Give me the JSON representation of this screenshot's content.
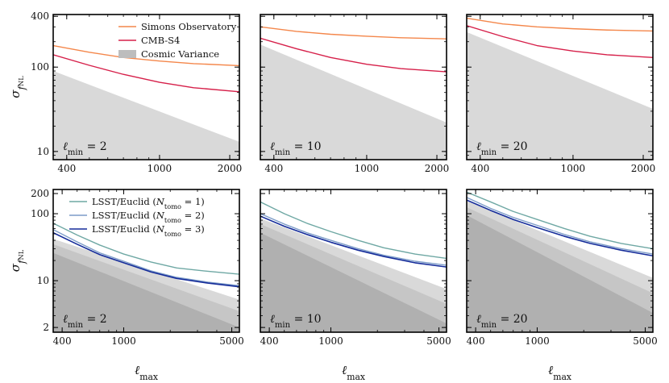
{
  "colors": {
    "simons": "#f4874b",
    "cmbs4": "#d6204a",
    "cv_light": "#d9d9d9",
    "cv_mid": "#c6c6c6",
    "cv_dark": "#b0b0b0",
    "lsst1": "#6fa8a4",
    "lsst2": "#7d9cc8",
    "lsst3": "#152c9a"
  },
  "axis_labels": {
    "ylabel_main": "σ",
    "ylabel_sub": "f",
    "ylabel_subsub": "NL",
    "xlabel_main": "ℓ",
    "xlabel_sub": "max"
  },
  "chart_data": [
    {
      "type": "line",
      "row": 0,
      "col": 0,
      "annotation_base": "ℓ",
      "annotation_sub": "min",
      "annotation_eq": " = 2",
      "xscale": "log",
      "yscale": "log",
      "xlim": [
        350,
        2200
      ],
      "ylim": [
        8,
        420
      ],
      "xticks": [
        400,
        1000,
        2000
      ],
      "xtick_labels": [
        "400",
        "1000",
        "2000"
      ],
      "yticks": [
        10,
        100,
        400
      ],
      "ytick_labels": [
        "10",
        "100",
        "400"
      ],
      "legend": {
        "placement": "top-right",
        "entries": [
          "Simons Observatory",
          "CMB-S4",
          "Cosmic Variance"
        ]
      },
      "series": [
        {
          "name": "Simons Observatory",
          "color_key": "simons",
          "x": [
            350,
            500,
            700,
            1000,
            1400,
            2200
          ],
          "y": [
            180,
            150,
            130,
            118,
            110,
            104
          ]
        },
        {
          "name": "CMB-S4",
          "color_key": "cmbs4",
          "x": [
            350,
            500,
            700,
            1000,
            1400,
            2200
          ],
          "y": [
            140,
            105,
            82,
            66,
            57,
            51
          ]
        }
      ],
      "bands": [
        {
          "name": "Cosmic Variance",
          "color_key": "cv_light",
          "x": [
            350,
            2200
          ],
          "y": [
            90,
            13
          ]
        }
      ]
    },
    {
      "type": "line",
      "row": 0,
      "col": 1,
      "annotation_base": "ℓ",
      "annotation_sub": "min",
      "annotation_eq": " = 10",
      "xscale": "log",
      "yscale": "log",
      "xlim": [
        350,
        2200
      ],
      "ylim": [
        8,
        420
      ],
      "xticks": [
        400,
        1000,
        2000
      ],
      "xtick_labels": [
        "400",
        "1000",
        "2000"
      ],
      "yticks": [
        10,
        100,
        400
      ],
      "ytick_labels": [],
      "series": [
        {
          "color_key": "simons",
          "x": [
            350,
            500,
            700,
            1000,
            1400,
            2200
          ],
          "y": [
            300,
            265,
            245,
            232,
            223,
            216
          ]
        },
        {
          "color_key": "cmbs4",
          "x": [
            350,
            500,
            700,
            1000,
            1400,
            2200
          ],
          "y": [
            220,
            165,
            130,
            108,
            96,
            88
          ]
        }
      ],
      "bands": [
        {
          "color_key": "cv_light",
          "x": [
            350,
            2200
          ],
          "y": [
            185,
            22
          ]
        }
      ]
    },
    {
      "type": "line",
      "row": 0,
      "col": 2,
      "annotation_base": "ℓ",
      "annotation_sub": "min",
      "annotation_eq": " = 20",
      "xscale": "log",
      "yscale": "log",
      "xlim": [
        350,
        2200
      ],
      "ylim": [
        8,
        420
      ],
      "xticks": [
        400,
        1000,
        2000
      ],
      "xtick_labels": [
        "400",
        "1000",
        "2000"
      ],
      "yticks": [
        10,
        100,
        400
      ],
      "ytick_labels": [],
      "series": [
        {
          "color_key": "simons",
          "x": [
            350,
            500,
            700,
            1000,
            1400,
            2200
          ],
          "y": [
            380,
            325,
            300,
            285,
            275,
            268
          ]
        },
        {
          "color_key": "cmbs4",
          "x": [
            350,
            500,
            700,
            1000,
            1400,
            2200
          ],
          "y": [
            310,
            230,
            180,
            155,
            140,
            130
          ]
        }
      ],
      "bands": [
        {
          "color_key": "cv_light",
          "x": [
            350,
            2200
          ],
          "y": [
            260,
            32
          ]
        }
      ]
    },
    {
      "type": "line",
      "row": 1,
      "col": 0,
      "annotation_base": "ℓ",
      "annotation_sub": "min",
      "annotation_eq": " = 2",
      "xscale": "log",
      "yscale": "log",
      "xlim": [
        350,
        5600
      ],
      "ylim": [
        1.7,
        230
      ],
      "xticks": [
        400,
        1000,
        5000
      ],
      "xtick_labels": [
        "400",
        "1000",
        "5000"
      ],
      "yticks": [
        2,
        10,
        100,
        200
      ],
      "ytick_labels": [
        "2",
        "10",
        "100",
        "200"
      ],
      "legend": {
        "placement": "top-right",
        "entries_main": [
          "LSST/Euclid (",
          "LSST/Euclid (",
          "LSST/Euclid ("
        ],
        "entries_var": [
          "N",
          "N",
          "N"
        ],
        "entries_sub": [
          "tomo",
          "tomo",
          "tomo"
        ],
        "entries_val": [
          " = 1)",
          " = 2)",
          " = 3)"
        ]
      },
      "series": [
        {
          "name": "LSST/Euclid (N_tomo = 1)",
          "color_key": "lsst1",
          "x": [
            350,
            500,
            700,
            1000,
            1500,
            2200,
            3500,
            5600
          ],
          "y": [
            72,
            48,
            34,
            25,
            19,
            15.5,
            13.8,
            12.5
          ]
        },
        {
          "name": "LSST/Euclid (N_tomo = 2)",
          "color_key": "lsst2",
          "x": [
            350,
            500,
            700,
            1000,
            1500,
            2200,
            3500,
            5600
          ],
          "y": [
            58,
            38,
            26,
            19.5,
            14,
            11.2,
            9.5,
            8.4
          ]
        },
        {
          "name": "LSST/Euclid (N_tomo = 3)",
          "color_key": "lsst3",
          "x": [
            350,
            500,
            700,
            1000,
            1500,
            2200,
            3500,
            5600
          ],
          "y": [
            52,
            35,
            24.5,
            18.5,
            13.5,
            10.8,
            9.2,
            8.1
          ]
        }
      ],
      "bands": [
        {
          "color_key": "cv_light",
          "x": [
            350,
            5600
          ],
          "y": [
            42,
            5.2
          ]
        },
        {
          "color_key": "cv_mid",
          "x": [
            350,
            5600
          ],
          "y": [
            35,
            3.5
          ]
        },
        {
          "color_key": "cv_dark",
          "x": [
            350,
            5600
          ],
          "y": [
            26,
            2.0
          ]
        }
      ]
    },
    {
      "type": "line",
      "row": 1,
      "col": 1,
      "annotation_base": "ℓ",
      "annotation_sub": "min",
      "annotation_eq": " = 10",
      "xscale": "log",
      "yscale": "log",
      "xlim": [
        350,
        5600
      ],
      "ylim": [
        1.7,
        230
      ],
      "xticks": [
        400,
        1000,
        5000
      ],
      "xtick_labels": [
        "400",
        "1000",
        "5000"
      ],
      "yticks": [
        2,
        10,
        100,
        200
      ],
      "ytick_labels": [],
      "series": [
        {
          "color_key": "lsst1",
          "x": [
            350,
            500,
            700,
            1000,
            1500,
            2200,
            3500,
            5600
          ],
          "y": [
            150,
            100,
            72,
            54,
            40,
            31,
            25,
            21.5
          ]
        },
        {
          "color_key": "lsst2",
          "x": [
            350,
            500,
            700,
            1000,
            1500,
            2200,
            3500,
            5600
          ],
          "y": [
            100,
            70,
            52,
            40,
            30,
            24,
            19.5,
            17
          ]
        },
        {
          "color_key": "lsst3",
          "x": [
            350,
            500,
            700,
            1000,
            1500,
            2200,
            3500,
            5600
          ],
          "y": [
            92,
            65,
            49,
            37.5,
            28.5,
            23,
            18.5,
            16
          ]
        }
      ],
      "bands": [
        {
          "color_key": "cv_light",
          "x": [
            350,
            5600
          ],
          "y": [
            85,
            7.5
          ]
        },
        {
          "color_key": "cv_mid",
          "x": [
            350,
            5600
          ],
          "y": [
            70,
            4.5
          ]
        },
        {
          "color_key": "cv_dark",
          "x": [
            350,
            5600
          ],
          "y": [
            52,
            2.3
          ]
        }
      ]
    },
    {
      "type": "line",
      "row": 1,
      "col": 2,
      "annotation_base": "ℓ",
      "annotation_sub": "min",
      "annotation_eq": " = 20",
      "xscale": "log",
      "yscale": "log",
      "xlim": [
        350,
        5600
      ],
      "ylim": [
        1.7,
        230
      ],
      "xticks": [
        400,
        1000,
        5000
      ],
      "xtick_labels": [
        "400",
        "1000",
        "5000"
      ],
      "yticks": [
        2,
        10,
        100,
        200
      ],
      "ytick_labels": [],
      "series": [
        {
          "color_key": "lsst1",
          "x": [
            350,
            500,
            700,
            1000,
            1500,
            2200,
            3500,
            5600
          ],
          "y": [
            210,
            150,
            108,
            82,
            60,
            46,
            36,
            30
          ]
        },
        {
          "color_key": "lsst2",
          "x": [
            350,
            500,
            700,
            1000,
            1500,
            2200,
            3500,
            5600
          ],
          "y": [
            175,
            120,
            88,
            67,
            49,
            38,
            30,
            25
          ]
        },
        {
          "color_key": "lsst3",
          "x": [
            350,
            500,
            700,
            1000,
            1500,
            2200,
            3500,
            5600
          ],
          "y": [
            160,
            112,
            82,
            62,
            46,
            36,
            28.5,
            23.5
          ]
        }
      ],
      "bands": [
        {
          "color_key": "cv_light",
          "x": [
            350,
            5600
          ],
          "y": [
            155,
            11
          ]
        },
        {
          "color_key": "cv_mid",
          "x": [
            350,
            5600
          ],
          "y": [
            125,
            6.5
          ]
        },
        {
          "color_key": "cv_dark",
          "x": [
            350,
            5600
          ],
          "y": [
            95,
            3.3
          ]
        }
      ]
    }
  ]
}
